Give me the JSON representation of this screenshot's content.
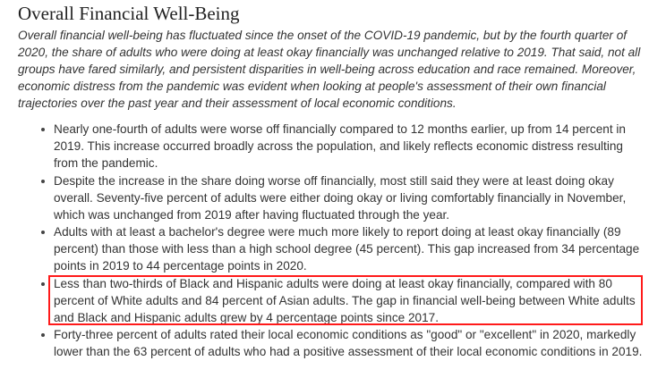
{
  "section": {
    "title": "Overall Financial Well-Being",
    "intro": "Overall financial well-being has fluctuated since the onset of the COVID-19 pandemic, but by the fourth quarter of 2020, the share of adults who were doing at least okay financially was unchanged relative to 2019. That said, not all groups have fared similarly, and persistent disparities in well-being across education and race remained. Moreover, economic distress from the pandemic was evident when looking at people's assessment of their own financial trajectories over the past year and their assessment of local economic conditions.",
    "bullets": [
      "Nearly one-fourth of adults were worse off financially compared to 12 months earlier, up from 14 percent in 2019. This increase occurred broadly across the population, and likely reflects economic distress resulting from the pandemic.",
      "Despite the increase in the share doing worse off financially, most still said they were at least doing okay overall. Seventy-five percent of adults were either doing okay or living comfortably financially in November, which was unchanged from 2019 after having fluctuated through the year.",
      "Adults with at least a bachelor's degree were much more likely to report doing at least okay financially (89 percent) than those with less than a high school degree (45 percent). This gap increased from 34 percentage points in 2019 to 44 percentage points in 2020.",
      "Less than two-thirds of Black and Hispanic adults were doing at least okay financially, compared with 80 percent of White adults and 84 percent of Asian adults. The gap in financial well-being between White adults and Black and Hispanic adults grew by 4 percentage points since 2017.",
      "Forty-three percent of adults rated their local economic conditions as \"good\" or \"excellent\" in 2020, markedly lower than the 63 percent of adults who had a positive assessment of their local economic conditions in 2019."
    ]
  },
  "highlight_color": "#ff1a1a"
}
